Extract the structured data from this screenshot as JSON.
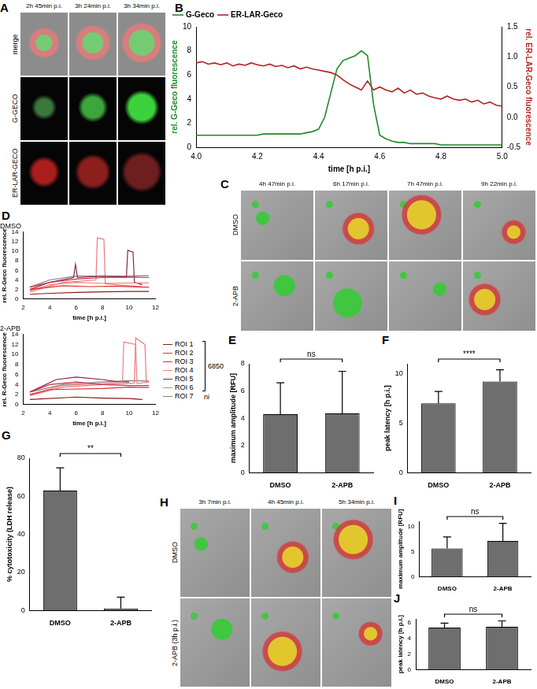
{
  "chart_data": [
    {
      "panel": "B",
      "type": "line",
      "xlabel": "time [h p.i.]",
      "ylabel": "rel. G-Geco fluorescence",
      "y2label": "rel. ER-LAR-Geco fluorescence",
      "xlim": [
        4,
        5
      ],
      "xticks": [
        {
          "value": 4,
          "label": "4.0"
        },
        {
          "value": 4.2,
          "label": "4.2"
        },
        {
          "value": 4.4,
          "label": "4.4"
        },
        {
          "value": 4.6,
          "label": "4.6"
        },
        {
          "value": 4.8,
          "label": "4.8"
        },
        {
          "value": 5,
          "label": "5.0"
        }
      ],
      "ylim": [
        0,
        10
      ],
      "yticks": [
        0,
        2,
        4,
        6,
        8,
        10
      ],
      "y2lim": [
        -0.5,
        1.5
      ],
      "y2ticks": [
        {
          "value": -0.5,
          "label": "-0.5"
        },
        {
          "value": 0,
          "label": "0.0"
        },
        {
          "value": 0.5,
          "label": "0.5"
        },
        {
          "value": 1,
          "label": "1.0"
        },
        {
          "value": 1.5,
          "label": "1.5"
        }
      ],
      "grid": false,
      "legend": "top-left",
      "x": [
        4,
        4.02,
        4.04,
        4.06,
        4.08,
        4.1,
        4.12,
        4.14,
        4.16,
        4.18,
        4.2,
        4.22,
        4.24,
        4.26,
        4.28,
        4.3,
        4.32,
        4.34,
        4.36,
        4.38,
        4.4,
        4.42,
        4.44,
        4.46,
        4.48,
        4.5,
        4.52,
        4.54,
        4.56,
        4.58,
        4.6,
        4.62,
        4.64,
        4.66,
        4.68,
        4.7,
        4.72,
        4.74,
        4.76,
        4.78,
        4.8,
        4.82,
        4.84,
        4.86,
        4.88,
        4.9,
        4.92,
        4.94,
        4.96,
        4.98,
        5
      ],
      "series": [
        {
          "name": "G-Geco",
          "color": "#1f8a2a",
          "values": [
            1,
            1,
            1,
            1,
            1,
            1,
            1,
            1,
            1,
            1,
            1,
            1.1,
            1.1,
            1.1,
            1.1,
            1.1,
            1.1,
            1.1,
            1.2,
            1.3,
            1.5,
            2.5,
            4.5,
            6.5,
            7.2,
            7.4,
            7.6,
            8,
            7.6,
            3.5,
            1,
            0.7,
            0.5,
            0.4,
            0.4,
            0.3,
            0.3,
            0.3,
            0.3,
            0.3,
            0.2,
            0.2,
            0.2,
            0.2,
            0.2,
            0.2,
            0.2,
            0.2,
            0.2,
            0.2,
            0.2
          ]
        },
        {
          "name": "ER-LAR-Geco",
          "color": "#b22222",
          "axis": "y2",
          "values": [
            0.9,
            0.92,
            0.88,
            0.9,
            0.87,
            0.9,
            0.85,
            0.88,
            0.86,
            0.9,
            0.87,
            0.85,
            0.88,
            0.84,
            0.86,
            0.82,
            0.85,
            0.8,
            0.83,
            0.8,
            0.78,
            0.76,
            0.74,
            0.7,
            0.62,
            0.55,
            0.5,
            0.45,
            0.6,
            0.45,
            0.5,
            0.45,
            0.42,
            0.48,
            0.4,
            0.45,
            0.38,
            0.4,
            0.35,
            0.32,
            0.3,
            0.35,
            0.3,
            0.28,
            0.3,
            0.25,
            0.28,
            0.22,
            0.25,
            0.2,
            0.18
          ]
        }
      ]
    },
    {
      "panel": "D",
      "type": "line",
      "title": "DMSO",
      "xlabel": "time [h p.i.]",
      "ylabel": "rel. R-Geco fluorescence",
      "xlim": [
        2,
        12
      ],
      "xticks": [
        2,
        4,
        6,
        8,
        10,
        12
      ],
      "ylim": [
        0,
        14
      ],
      "yticks": [
        0,
        2,
        4,
        6,
        8,
        10,
        12,
        14
      ],
      "grid": false,
      "legend": "right",
      "legend_groups": [
        {
          "label": "6850",
          "series": [
            "ROI 1",
            "ROI 2",
            "ROI 3",
            "ROI 4",
            "ROI 5",
            "ROI 6"
          ]
        },
        {
          "label": "ni",
          "series": [
            "ROI 7"
          ]
        }
      ],
      "series": [
        {
          "name": "ROI 1",
          "color": "#8b1a1a",
          "x": [
            2.5,
            4,
            6,
            8,
            10,
            11.5
          ],
          "values": [
            1,
            1.2,
            1.4,
            1.5,
            1.6,
            1.6
          ]
        },
        {
          "name": "ROI 2",
          "color": "#e03030",
          "x": [
            2.5,
            5,
            7,
            9,
            11,
            11.5
          ],
          "values": [
            2,
            2.8,
            2.6,
            2.7,
            2.5,
            2.5
          ]
        },
        {
          "name": "ROI 3",
          "color": "#c8304a",
          "x": [
            2.5,
            4,
            6,
            8,
            10,
            11.5
          ],
          "values": [
            2.5,
            3.5,
            4.2,
            4.5,
            4.6,
            4.5
          ]
        },
        {
          "name": "ROI 4",
          "color": "#f08080",
          "x": [
            2.5,
            4,
            6,
            8,
            11.5
          ],
          "values": [
            1.8,
            3,
            3.5,
            3.3,
            3.4
          ]
        },
        {
          "name": "ROI 5",
          "color": "#8b2252",
          "x": [
            2.5,
            4,
            5.8,
            5.95,
            6.1,
            8,
            9.8,
            9.9,
            10.3,
            10.4,
            11
          ],
          "values": [
            2,
            3.5,
            4.5,
            7.3,
            4.5,
            4.8,
            4.6,
            10.2,
            9.8,
            3.5,
            3
          ]
        },
        {
          "name": "ROI 6",
          "color": "#e87a7a",
          "x": [
            2.5,
            5,
            7.5,
            7.6,
            8.1,
            8.2,
            10,
            11
          ],
          "values": [
            1.5,
            3.5,
            4,
            12.8,
            12.5,
            3.2,
            2.8,
            2.6
          ]
        },
        {
          "name": "ROI 7",
          "color": "#808080",
          "x": [
            2.5,
            4,
            6,
            8,
            10,
            11.5
          ],
          "values": [
            2.5,
            4,
            4.8,
            4.8,
            4.8,
            4.9
          ]
        }
      ]
    },
    {
      "type": "line",
      "title": "2-APB",
      "xlabel": "time [h p.i.]",
      "ylabel": "rel. R-Geco fluorescence",
      "xlim": [
        2,
        12
      ],
      "xticks": [
        2,
        4,
        6,
        8,
        10,
        12
      ],
      "ylim": [
        0,
        14
      ],
      "yticks": [
        0,
        2,
        4,
        6,
        8,
        10,
        12,
        14
      ],
      "grid": false,
      "series": [
        {
          "name": "ROI 1",
          "color": "#8b1a1a",
          "x": [
            2.5,
            6,
            8,
            10,
            11
          ],
          "values": [
            1,
            1.5,
            1.3,
            1.2,
            1
          ]
        },
        {
          "name": "ROI 2",
          "color": "#e03030",
          "x": [
            2.5,
            4,
            8,
            10,
            11.5
          ],
          "values": [
            2,
            3,
            3.2,
            3.5,
            3.4
          ]
        },
        {
          "name": "ROI 3",
          "color": "#c8304a",
          "x": [
            2.5,
            4,
            6,
            8,
            10,
            11.5
          ],
          "values": [
            2.5,
            4,
            4.5,
            4,
            3.8,
            3.8
          ]
        },
        {
          "name": "ROI 4",
          "color": "#f08080",
          "x": [
            2.5,
            5,
            8,
            9.5,
            9.6,
            10.5,
            10.6,
            11.5
          ],
          "values": [
            2,
            3.8,
            4.2,
            4.5,
            12.5,
            12,
            4.2,
            4.5
          ]
        },
        {
          "name": "ROI 5",
          "color": "#8b2252",
          "x": [
            2.5,
            4.5,
            6,
            8,
            9,
            10
          ],
          "values": [
            2.5,
            5,
            5.5,
            5,
            4.6,
            4.5
          ]
        },
        {
          "name": "ROI 6",
          "color": "#e87a7a",
          "x": [
            2.5,
            5,
            8,
            10.4,
            10.5,
            11.2,
            11.3,
            11.5
          ],
          "values": [
            1.8,
            3.5,
            4,
            4.3,
            13.3,
            12,
            4.5,
            4.8
          ]
        },
        {
          "name": "ROI 7",
          "color": "#808080",
          "x": [
            2.5,
            5,
            8,
            10,
            11.5
          ],
          "values": [
            2.5,
            4,
            4.5,
            4.8,
            4.7
          ]
        }
      ]
    },
    {
      "panel": "E",
      "type": "bar",
      "ylabel": "maximum amplitude [RFU]",
      "categories": [
        "DMSO",
        "2-APB"
      ],
      "values": [
        4.3,
        4.35
      ],
      "errors": [
        2.3,
        3.1
      ],
      "color": "#6e6e6e",
      "ylim": [
        0,
        8
      ],
      "yticks": [
        0,
        2,
        4,
        6,
        8
      ],
      "grid": false,
      "annotation": "ns"
    },
    {
      "panel": "F",
      "type": "bar",
      "ylabel": "peak latency [h p.i.]",
      "categories": [
        "DMSO",
        "2-APB"
      ],
      "values": [
        7,
        9.2
      ],
      "errors": [
        1.2,
        1.2
      ],
      "color": "#6e6e6e",
      "ylim": [
        0,
        11
      ],
      "yticks": [
        0,
        5,
        10
      ],
      "grid": false,
      "annotation": "****"
    },
    {
      "panel": "G",
      "type": "bar",
      "ylabel": "% cytotoxicity (LDH release)",
      "categories": [
        "DMSO",
        "2-APB"
      ],
      "values": [
        63,
        1
      ],
      "errors": [
        12,
        6
      ],
      "color": "#6e6e6e",
      "ylim": [
        0,
        80
      ],
      "yticks": [
        0,
        20,
        40,
        60,
        80
      ],
      "grid": false,
      "annotation": "**"
    },
    {
      "panel": "I",
      "type": "bar",
      "ylabel": "maximum amplitude [RFU]",
      "categories": [
        "DMSO",
        "2-APB"
      ],
      "values": [
        5.6,
        7.1
      ],
      "errors": [
        2.3,
        3.5
      ],
      "color": "#6e6e6e",
      "ylim": [
        0,
        11
      ],
      "yticks": [
        0,
        5,
        10
      ],
      "grid": false,
      "annotation": "ns"
    },
    {
      "panel": "J",
      "type": "bar",
      "ylabel": "peak latency [h p.i.]",
      "categories": [
        "DMSO",
        "2-APB"
      ],
      "values": [
        5.4,
        5.5
      ],
      "errors": [
        0.55,
        0.75
      ],
      "color": "#6e6e6e",
      "ylim": [
        0,
        6.5
      ],
      "yticks": [
        0,
        2,
        4,
        6
      ],
      "grid": false,
      "annotation": "ns"
    }
  ],
  "images": [
    {
      "panel": "A",
      "columns": [
        "2h 45min p.i.",
        "3h 24min p.i.",
        "3h 34min p.i."
      ],
      "rows": [
        "merge",
        "G-GECO",
        "ER-LAR-GECO"
      ]
    },
    {
      "panel": "C",
      "columns": [
        "4h 47min p.i.",
        "6h 17min p.i.",
        "7h 47min p.i.",
        "9h 22min p.i."
      ],
      "rows": [
        "DMSO",
        "2-APB"
      ]
    },
    {
      "panel": "H",
      "columns": [
        "3h 7min p.i.",
        "4h 45min p.i.",
        "5h 34min p.i."
      ],
      "rows": [
        "DMSO",
        "2-APB (3h p.i.)"
      ]
    }
  ]
}
